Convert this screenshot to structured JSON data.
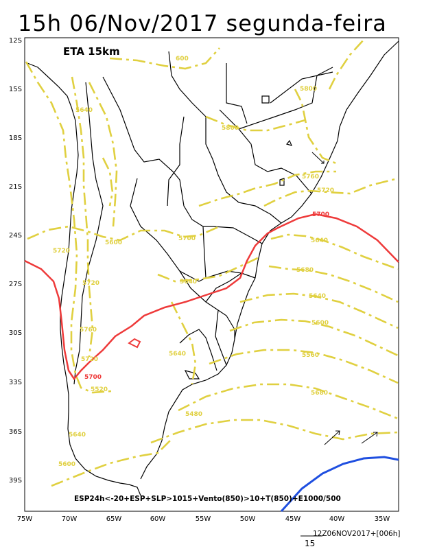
{
  "title": "15h 06/Nov/2017 segunda-feira",
  "model_label": "ETA 15km",
  "caption": "ESP24h<-20+ESP+SLP>1015+Vento(850)>10+T(850)+E1000/500",
  "valid_time": "12Z06NOV2017+[006h]",
  "vector_scale_value": "15",
  "lat_labels": [
    "12S",
    "15S",
    "18S",
    "21S",
    "24S",
    "27S",
    "30S",
    "33S",
    "36S",
    "39S"
  ],
  "lon_labels": [
    "75W",
    "70W",
    "65W",
    "60W",
    "55W",
    "50W",
    "45W",
    "40W",
    "35W"
  ],
  "contour_labels_yellow": [
    "600",
    "5800",
    "5640",
    "5800",
    "5760",
    "5720",
    "5720",
    "5600",
    "5700",
    "5640",
    "5720",
    "5640",
    "5760",
    "5720",
    "5640",
    "5680",
    "5640",
    "5600",
    "5560",
    "5520",
    "5680",
    "5480",
    "5640",
    "5600"
  ],
  "contour_label_red": "5700",
  "colors": {
    "geopotential_contour": "#e0d040",
    "isotherm_5700": "#ee3a3a",
    "isotherm_blue": "#1f4fe0",
    "coastline": "#000000",
    "frame": "#000000"
  }
}
